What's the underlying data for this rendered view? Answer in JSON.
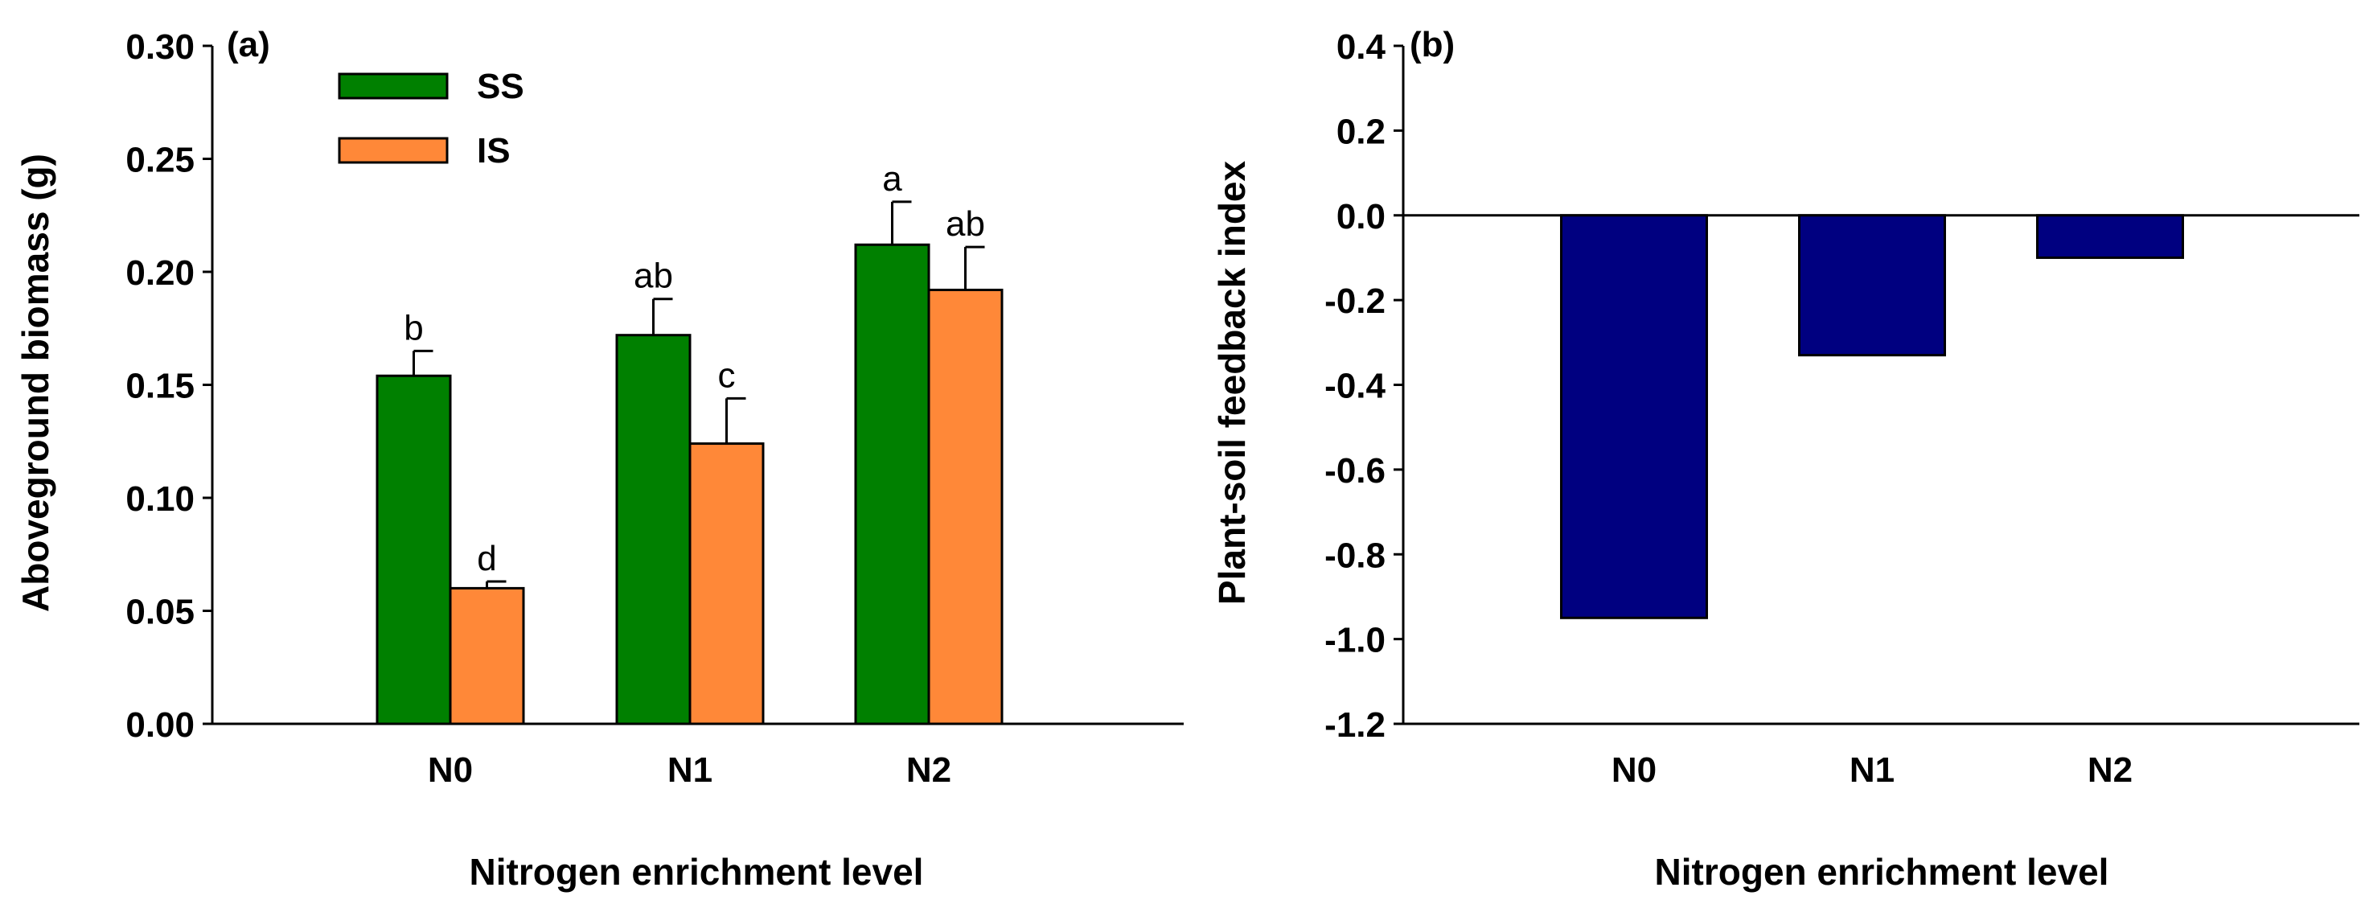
{
  "chart_data": [
    {
      "type": "bar",
      "panel_label": "(a)",
      "categories": [
        "N0",
        "N1",
        "N2"
      ],
      "series": [
        {
          "name": "SS",
          "color": "#008000",
          "values": [
            0.154,
            0.172,
            0.212
          ],
          "errors": [
            0.011,
            0.016,
            0.019
          ],
          "letters": [
            "b",
            "ab",
            "a"
          ]
        },
        {
          "name": "IS",
          "color": "#ff8838",
          "values": [
            0.06,
            0.124,
            0.192
          ],
          "errors": [
            0.003,
            0.02,
            0.019
          ],
          "letters": [
            "d",
            "c",
            "ab"
          ]
        }
      ],
      "xlabel": "Nitrogen enrichment level",
      "ylabel": "Aboveground biomass (g)",
      "ylim": [
        0,
        0.3
      ],
      "yticks": [
        "0.00",
        "0.05",
        "0.10",
        "0.15",
        "0.20",
        "0.25",
        "0.30"
      ],
      "legend": [
        "SS",
        "IS"
      ],
      "legend_position": "top-left"
    },
    {
      "type": "bar",
      "panel_label": "(b)",
      "categories": [
        "N0",
        "N1",
        "N2"
      ],
      "series": [
        {
          "name": "feedback",
          "color": "#000080",
          "values": [
            -0.95,
            -0.33,
            -0.1
          ]
        }
      ],
      "xlabel": "Nitrogen enrichment level",
      "ylabel": "Plant-soil feedback index",
      "ylim": [
        -1.2,
        0.4
      ],
      "yticks": [
        "-1.2",
        "-1.0",
        "-0.8",
        "-0.6",
        "-0.4",
        "-0.2",
        "0.0",
        "0.2",
        "0.4"
      ]
    }
  ]
}
